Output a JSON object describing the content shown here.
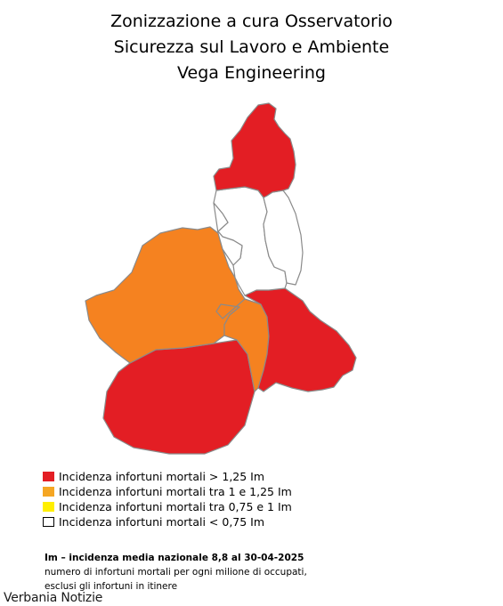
{
  "title": {
    "line1": "Zonizzazione a cura Osservatorio",
    "line2": "Sicurezza sul Lavoro e Ambiente",
    "line3": "Vega Engineering"
  },
  "colors": {
    "red": "#e31e24",
    "orange": "#f58220",
    "yellow": "#ffef00",
    "white": "#ffffff",
    "border": "#8a8a8a"
  },
  "map": {
    "regions": [
      {
        "id": "VCO",
        "level": "red"
      },
      {
        "id": "VC",
        "level": "white"
      },
      {
        "id": "BI",
        "level": "white"
      },
      {
        "id": "NO",
        "level": "white"
      },
      {
        "id": "TO",
        "level": "orange"
      },
      {
        "id": "AT",
        "level": "orange"
      },
      {
        "id": "AL",
        "level": "red"
      },
      {
        "id": "CN",
        "level": "red"
      }
    ]
  },
  "legend": [
    {
      "label": "Incidenza infortuni mortali > 1,25 Im",
      "color": "#e31e24"
    },
    {
      "label": "Incidenza infortuni mortali tra 1 e 1,25 Im",
      "color": "#f5a623"
    },
    {
      "label": "Incidenza infortuni mortali tra 0,75 e 1 Im",
      "color": "#ffef00"
    },
    {
      "label": "Incidenza infortuni mortali < 0,75 Im",
      "color": "#ffffff"
    }
  ],
  "notes": {
    "line1": "Im – incidenza media nazionale 8,8 al 30-04-2025",
    "line2": "numero di infortuni mortali per ogni milione di occupati,",
    "line3": "esclusi gli infortuni in itinere"
  },
  "watermark": "Verbania Notizie"
}
